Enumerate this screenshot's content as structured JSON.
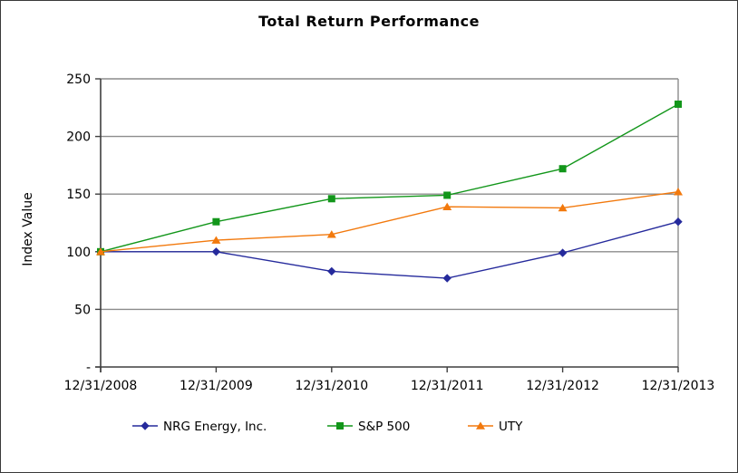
{
  "figure": {
    "border_color": "#3a3a3a",
    "background": "#ffffff"
  },
  "chart_data": {
    "type": "line",
    "title": "Total Return Performance",
    "xlabel": "",
    "ylabel": "Index Value",
    "ylim": [
      0,
      250
    ],
    "grid": true,
    "legend_position": "bottom",
    "categories": [
      "12/31/2008",
      "12/31/2009",
      "12/31/2010",
      "12/31/2011",
      "12/31/2012",
      "12/31/2013"
    ],
    "yticks": [
      {
        "value": 0,
        "label": "-"
      },
      {
        "value": 50,
        "label": "50"
      },
      {
        "value": 100,
        "label": "100"
      },
      {
        "value": 150,
        "label": "150"
      },
      {
        "value": 200,
        "label": "200"
      },
      {
        "value": 250,
        "label": "250"
      }
    ],
    "series": [
      {
        "name": "NRG Energy, Inc.",
        "marker": "diamond",
        "color": "#252A9C",
        "values": [
          100,
          100,
          83,
          77,
          99,
          126
        ]
      },
      {
        "name": "S&P 500",
        "marker": "square",
        "color": "#12961A",
        "values": [
          100,
          126,
          146,
          149,
          172,
          228
        ]
      },
      {
        "name": "UTY",
        "marker": "triangle",
        "color": "#F2790D",
        "values": [
          100,
          110,
          115,
          139,
          138,
          152
        ]
      }
    ],
    "colors": {
      "gridline": "#8C8C8C",
      "axis": "#3F3F3F",
      "text": "#000000",
      "plot_right_border": "#8C8C8C"
    }
  }
}
